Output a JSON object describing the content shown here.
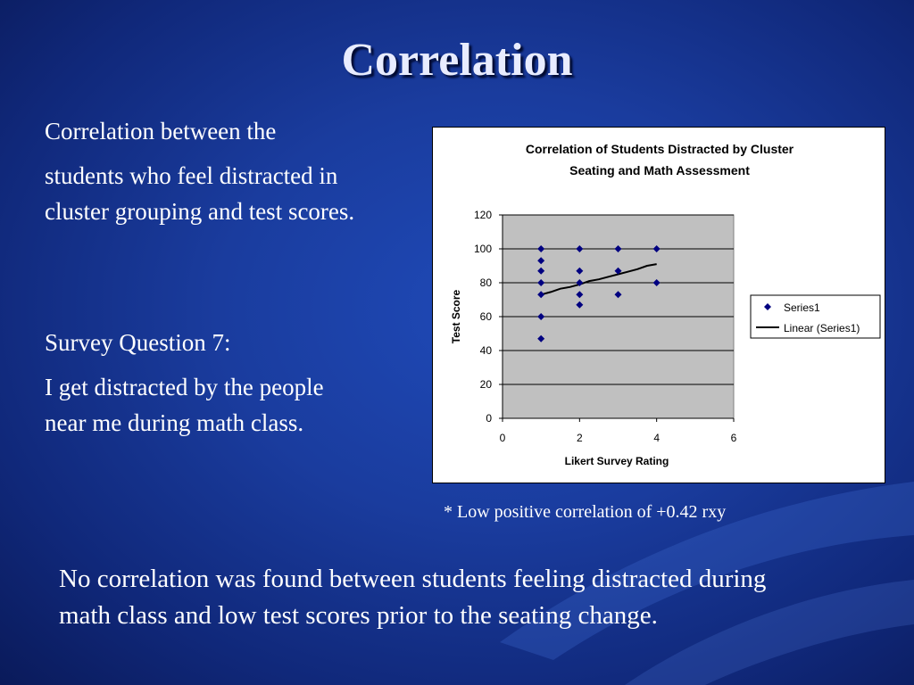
{
  "slide": {
    "title": "Correlation",
    "intro": [
      "Correlation between the",
      "students who feel distracted in",
      "cluster grouping and test scores."
    ],
    "question": [
      "Survey Question 7:",
      "I get distracted by the people",
      "near me during math class."
    ],
    "footnote": "* Low positive correlation of  +0.42 rxy",
    "conclusion": [
      "No correlation was found between students feeling distracted during",
      "math class and low test scores prior to the seating change."
    ]
  },
  "chart_data": {
    "type": "scatter",
    "title_lines": [
      "Correlation of Students Distracted by Cluster",
      "Seating and Math Assessment"
    ],
    "xlabel": "Likert Survey Rating",
    "ylabel": "Test Score",
    "xlim": [
      0,
      6
    ],
    "ylim": [
      0,
      120
    ],
    "xticks": [
      0,
      2,
      4,
      6
    ],
    "yticks": [
      0,
      20,
      40,
      60,
      80,
      100,
      120
    ],
    "grid": "horizontal",
    "legend_position": "right",
    "series": [
      {
        "name": "Series1",
        "color": "#000080",
        "marker": "diamond",
        "points": [
          [
            1,
            100
          ],
          [
            1,
            93
          ],
          [
            1,
            87
          ],
          [
            1,
            80
          ],
          [
            1,
            73
          ],
          [
            1,
            60
          ],
          [
            1,
            47
          ],
          [
            2,
            100
          ],
          [
            2,
            87
          ],
          [
            2,
            80
          ],
          [
            2,
            73
          ],
          [
            2,
            67
          ],
          [
            3,
            100
          ],
          [
            3,
            87
          ],
          [
            3,
            73
          ],
          [
            4,
            100
          ],
          [
            4,
            80
          ]
        ]
      }
    ],
    "trendline": {
      "name": "Linear (Series1)",
      "color": "#000000",
      "points": [
        [
          1,
          73
        ],
        [
          1.25,
          74.5
        ],
        [
          1.5,
          76.5
        ],
        [
          1.75,
          77.5
        ],
        [
          2,
          79
        ],
        [
          2.25,
          81
        ],
        [
          2.5,
          82
        ],
        [
          2.75,
          83.5
        ],
        [
          3,
          85
        ],
        [
          3.25,
          86.5
        ],
        [
          3.5,
          88
        ],
        [
          3.75,
          90
        ],
        [
          4,
          91
        ]
      ]
    },
    "plot_bg": "#c0c0c0"
  }
}
